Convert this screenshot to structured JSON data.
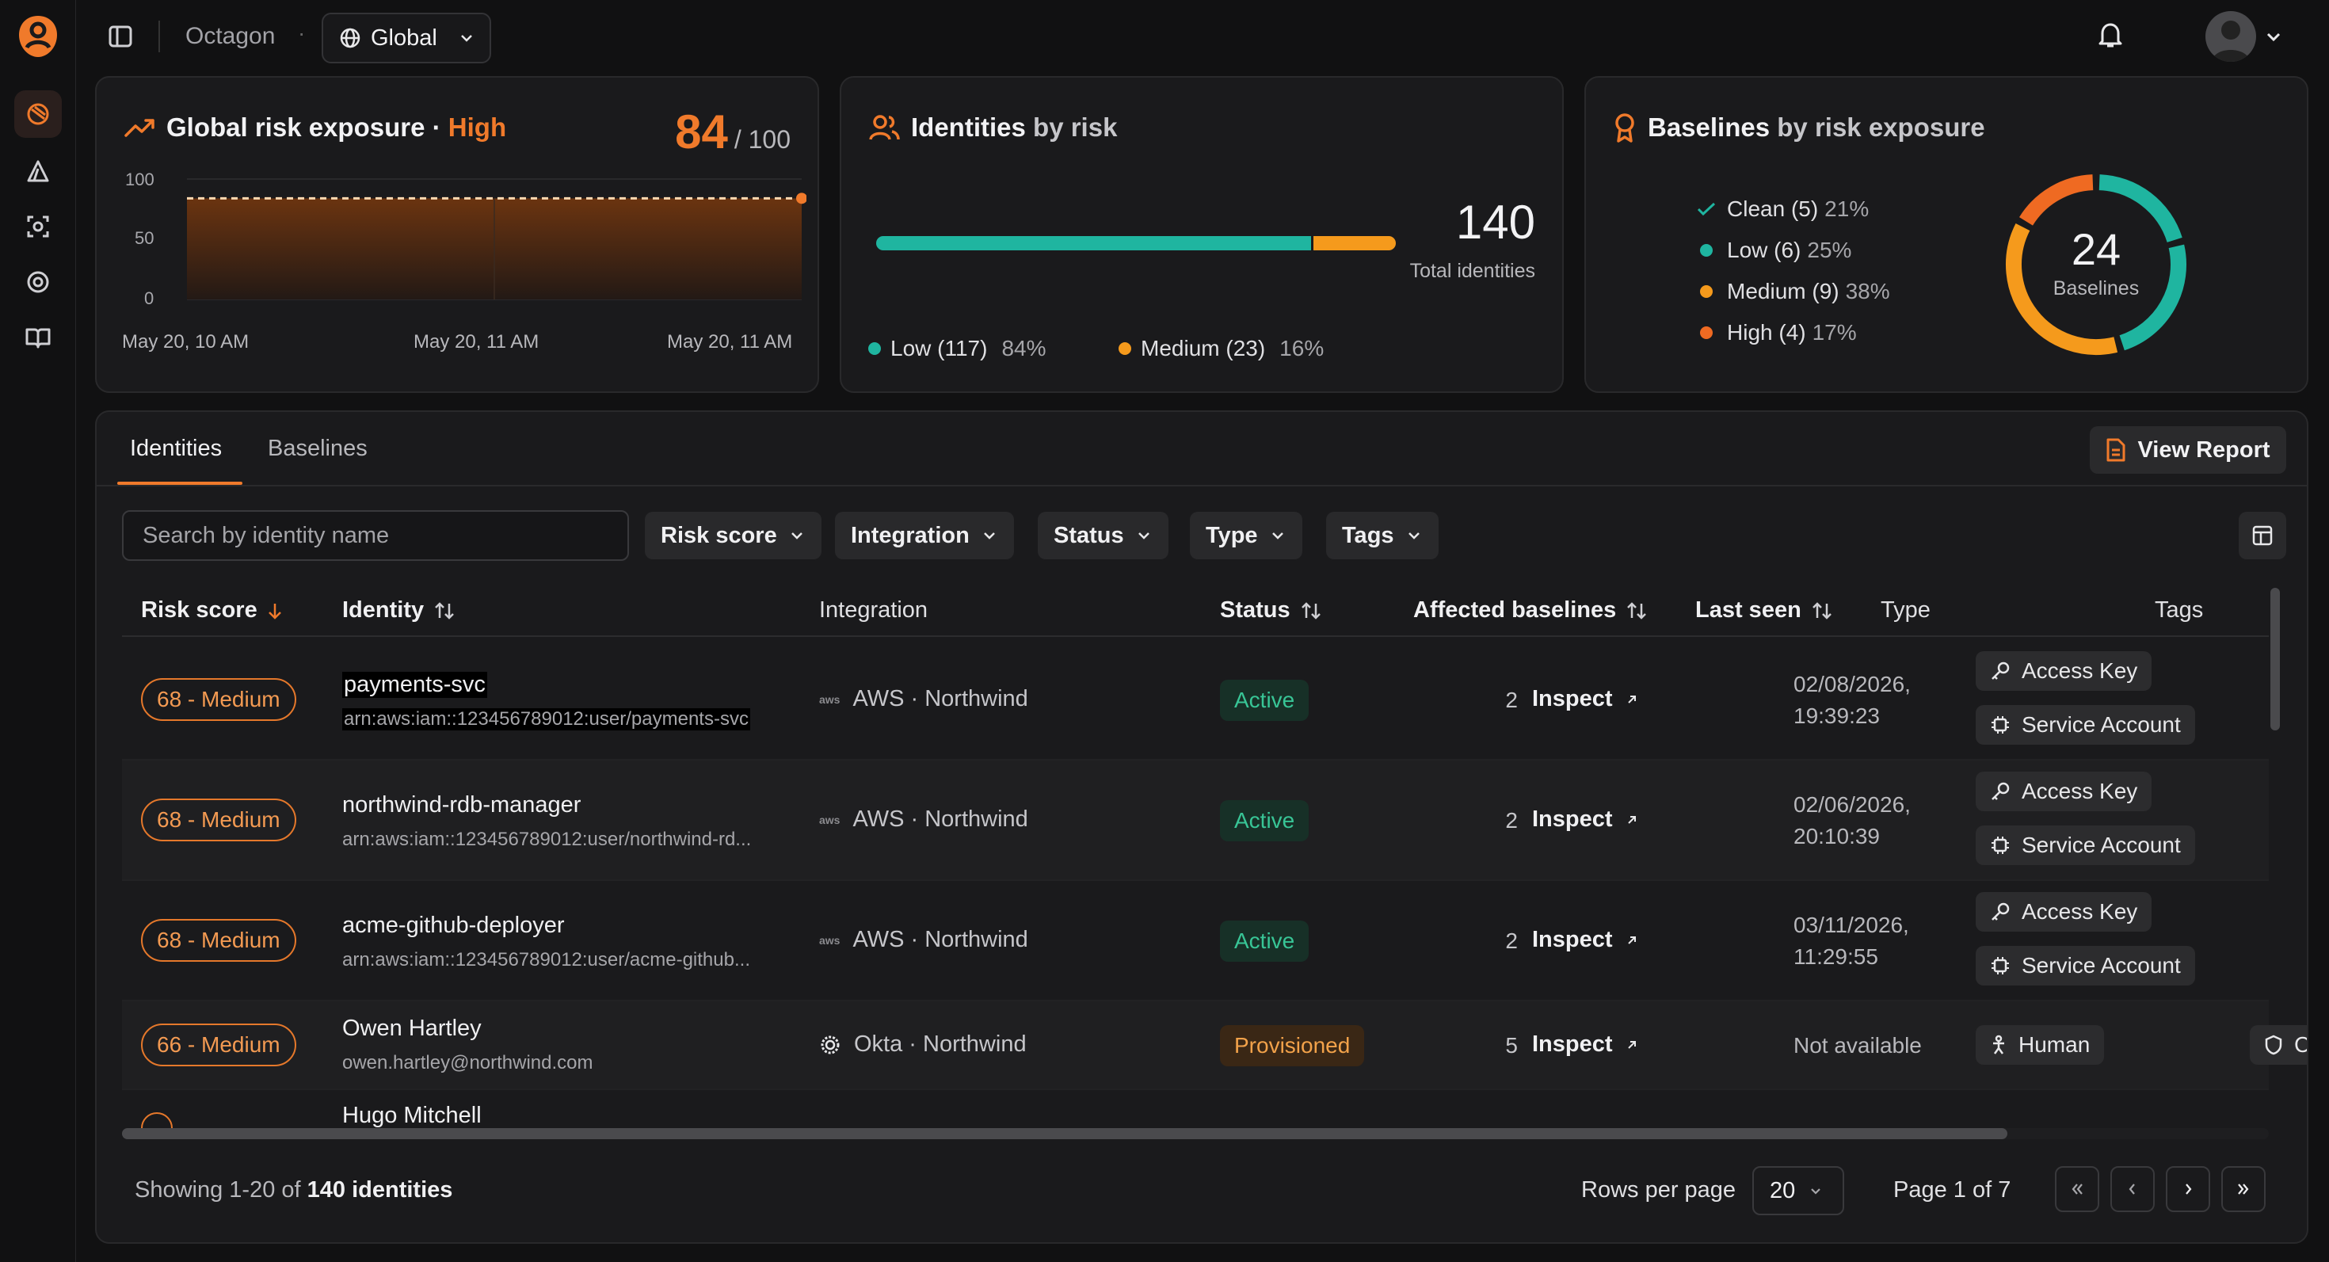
{
  "topbar": {
    "org": "Octagon",
    "scope": "Global"
  },
  "risk_card": {
    "title": "Global risk exposure",
    "level": "High",
    "score": "84",
    "max": "/ 100",
    "y_ticks": [
      "100",
      "50",
      "0"
    ],
    "x_ticks": [
      "May 20, 10 AM",
      "May 20, 11 AM",
      "May 20, 11 AM"
    ]
  },
  "chart_data": {
    "type": "area",
    "x": [
      "May 20, 10 AM",
      "May 20, 11 AM",
      "May 20, 11 AM"
    ],
    "series": [
      {
        "values": [
          84,
          84,
          84
        ]
      }
    ],
    "ylim": [
      0,
      100
    ]
  },
  "identities_card": {
    "title": "Identities",
    "title_muted": "by risk",
    "total": "140",
    "total_label": "Total identities",
    "segments": [
      {
        "label": "Low (117)",
        "pct": "84%",
        "value": 84,
        "color": "#1fb5a0"
      },
      {
        "label": "Medium (23)",
        "pct": "16%",
        "value": 16,
        "color": "#f59a1c"
      }
    ]
  },
  "baselines_card": {
    "title": "Baselines",
    "title_muted": "by risk exposure",
    "total": "24",
    "total_label": "Baselines",
    "items": [
      {
        "label": "Clean (5)",
        "pct": "21%",
        "value": 21,
        "color": "#1fb5a0",
        "icon": "check-icon"
      },
      {
        "label": "Low (6)",
        "pct": "25%",
        "value": 25,
        "color": "#1fb5a0"
      },
      {
        "label": "Medium (9)",
        "pct": "38%",
        "value": 38,
        "color": "#f59a1c"
      },
      {
        "label": "High (4)",
        "pct": "17%",
        "value": 17,
        "color": "#ef6a22"
      }
    ]
  },
  "tabs": {
    "identities": "Identities",
    "baselines": "Baselines",
    "view_report": "View Report"
  },
  "filters": {
    "search_placeholder": "Search by identity name",
    "risk_score": "Risk score",
    "integration": "Integration",
    "status": "Status",
    "type": "Type",
    "tags": "Tags"
  },
  "columns": {
    "risk": "Risk score",
    "identity": "Identity",
    "integration": "Integration",
    "status": "Status",
    "affected": "Affected baselines",
    "last_seen": "Last seen",
    "type": "Type",
    "tags": "Tags"
  },
  "rows": [
    {
      "risk": "68 - Medium",
      "name": "payments-svc",
      "sub": "arn:aws:iam::123456789012:user/payments-svc",
      "integration": "AWS · Northwind",
      "status": "Active",
      "affected": "2",
      "inspect": "Inspect",
      "last1": "02/08/2026,",
      "last2": "19:39:23",
      "type1": "Access Key",
      "type2": "Service Account"
    },
    {
      "risk": "68 - Medium",
      "name": "northwind-rdb-manager",
      "sub": "arn:aws:iam::123456789012:user/northwind-rd...",
      "integration": "AWS · Northwind",
      "status": "Active",
      "affected": "2",
      "inspect": "Inspect",
      "last1": "02/06/2026,",
      "last2": "20:10:39",
      "type1": "Access Key",
      "type2": "Service Account"
    },
    {
      "risk": "68 - Medium",
      "name": "acme-github-deployer",
      "sub": "arn:aws:iam::123456789012:user/acme-github...",
      "integration": "AWS · Northwind",
      "status": "Active",
      "affected": "2",
      "inspect": "Inspect",
      "last1": "03/11/2026,",
      "last2": "11:29:55",
      "type1": "Access Key",
      "type2": "Service Account"
    },
    {
      "risk": "66 - Medium",
      "name": "Owen Hartley",
      "sub": "owen.hartley@northwind.com",
      "integration": "Okta · Northwind",
      "status": "Provisioned",
      "affected": "5",
      "inspect": "Inspect",
      "last1": "Not available",
      "type1": "Human",
      "tag": "Critica"
    },
    {
      "name": "Hugo Mitchell"
    }
  ],
  "footer": {
    "showing": "Showing 1-20 of",
    "count": "140 identities",
    "rows_per_page": "Rows per page",
    "rpp_value": "20",
    "page": "Page 1 of 7"
  }
}
